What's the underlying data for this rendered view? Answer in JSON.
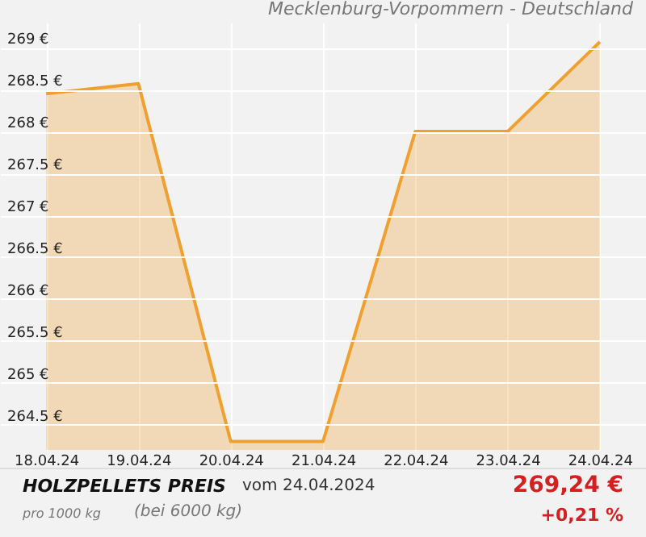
{
  "chart_data": {
    "type": "area",
    "title": "Mecklenburg-Vorpommern - Deutschland",
    "categories": [
      "18.04.24",
      "19.04.24",
      "20.04.24",
      "21.04.24",
      "22.04.24",
      "23.04.24",
      "24.04.24"
    ],
    "series": [
      {
        "color": "#f0a030",
        "values": [
          268.45,
          268.57,
          264.3,
          264.3,
          268.0,
          268.0,
          269.07
        ]
      }
    ],
    "ylim": [
      264.2,
      269.3
    ],
    "yticks": [
      {
        "value": 264.5,
        "label": "264.5 €"
      },
      {
        "value": 265,
        "label": "265 €"
      },
      {
        "value": 265.5,
        "label": "265.5 €"
      },
      {
        "value": 266,
        "label": "266 €"
      },
      {
        "value": 266.5,
        "label": "266.5 €"
      },
      {
        "value": 267,
        "label": "267 €"
      },
      {
        "value": 267.5,
        "label": "267.5 €"
      },
      {
        "value": 268,
        "label": "268 €"
      },
      {
        "value": 268.5,
        "label": "268.5 €"
      },
      {
        "value": 269,
        "label": "269 €"
      }
    ],
    "grid": true,
    "annotations": [
      "HOLZPELLETS PREIS",
      "vom 24.04.2024",
      "pro 1000 kg",
      "(bei 6000 kg)",
      "269,24 €",
      "+0,21 %"
    ]
  }
}
